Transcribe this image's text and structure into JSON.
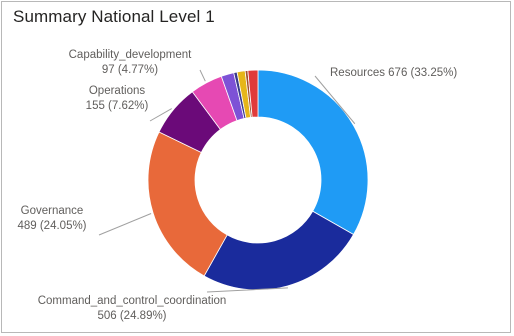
{
  "visual": {
    "title": "Summary National Level 1"
  },
  "chart_data": {
    "type": "pie",
    "variant": "donut",
    "title": "Summary National Level 1",
    "slices": [
      {
        "name": "Resources",
        "value": 676,
        "percent": "33.25%",
        "color": "#1f9bf5",
        "label_line1": "Resources 676 (33.25%)",
        "label_line2": ""
      },
      {
        "name": "Command_and_control_coordination",
        "value": 506,
        "percent": "24.89%",
        "color": "#1a2b9c",
        "label_line1": "Command_and_control_coordination",
        "label_line2": "506 (24.89%)"
      },
      {
        "name": "Governance",
        "value": 489,
        "percent": "24.05%",
        "color": "#e8693a",
        "label_line1": "Governance",
        "label_line2": "489 (24.05%)"
      },
      {
        "name": "Operations",
        "value": 155,
        "percent": "7.62%",
        "color": "#6b0a79",
        "label_line1": "Operations",
        "label_line2": "155 (7.62%)"
      },
      {
        "name": "Capability_development",
        "value": 97,
        "percent": "4.77%",
        "color": "#e649b3",
        "label_line1": "Capability_development",
        "label_line2": "97 (4.77%)"
      },
      {
        "name": "",
        "value": 38,
        "percent": "",
        "color": "#7d52d6",
        "label_line1": "",
        "label_line2": ""
      },
      {
        "name": "",
        "value": 10,
        "percent": "",
        "color": "#3a3a8c",
        "label_line1": "",
        "label_line2": ""
      },
      {
        "name": "",
        "value": 24,
        "percent": "",
        "color": "#e6b619",
        "label_line1": "",
        "label_line2": ""
      },
      {
        "name": "",
        "value": 8,
        "percent": "",
        "color": "#a0522d",
        "label_line1": "",
        "label_line2": ""
      },
      {
        "name": "",
        "value": 30,
        "percent": "",
        "color": "#e03b3b",
        "label_line1": "",
        "label_line2": ""
      }
    ]
  }
}
